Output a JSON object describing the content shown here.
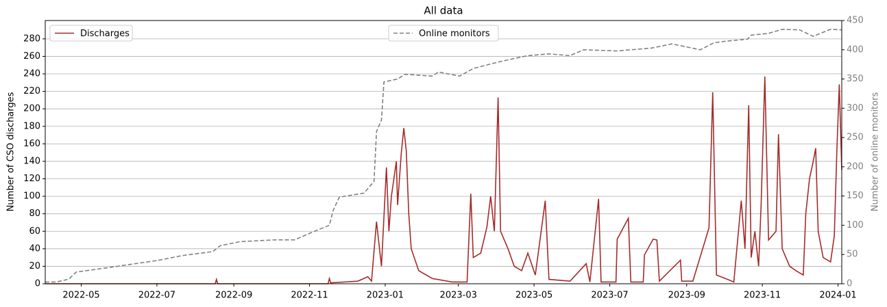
{
  "chart_data": {
    "type": "line",
    "title": "All data",
    "ylabel": "Number of CSO discharges",
    "y2label": "Number of online monitors",
    "xlim": [
      "2022-04-02",
      "2024-01-04"
    ],
    "xticks": [
      "2022-05",
      "2022-07",
      "2022-09",
      "2022-11",
      "2023-01",
      "2023-03",
      "2023-05",
      "2023-07",
      "2023-09",
      "2023-11",
      "2024-01"
    ],
    "ylim": [
      0,
      301
    ],
    "yticks": [
      0,
      20,
      40,
      60,
      80,
      100,
      120,
      140,
      160,
      180,
      200,
      220,
      240,
      260,
      280
    ],
    "y2lim": [
      0,
      450
    ],
    "y2ticks": [
      0,
      50,
      100,
      150,
      200,
      250,
      300,
      350,
      400,
      450
    ],
    "grid": true,
    "series": [
      {
        "name": "Discharges",
        "color": "#a52a2a",
        "dash": false,
        "axis": "y",
        "legend": "upper left",
        "x": [
          "2022-04-02",
          "2022-08-17",
          "2022-08-18",
          "2022-08-19",
          "2022-11-16",
          "2022-11-17",
          "2022-11-18",
          "2022-12-10",
          "2022-12-18",
          "2022-12-21",
          "2022-12-25",
          "2022-12-29",
          "2023-01-02",
          "2023-01-04",
          "2023-01-06",
          "2023-01-10",
          "2023-01-11",
          "2023-01-14",
          "2023-01-16",
          "2023-01-18",
          "2023-01-20",
          "2023-01-22",
          "2023-01-28",
          "2023-02-08",
          "2023-02-24",
          "2023-03-08",
          "2023-03-11",
          "2023-03-13",
          "2023-03-19",
          "2023-03-24",
          "2023-03-27",
          "2023-03-30",
          "2023-04-02",
          "2023-04-04",
          "2023-04-10",
          "2023-04-15",
          "2023-04-21",
          "2023-04-26",
          "2023-05-02",
          "2023-05-10",
          "2023-05-13",
          "2023-05-30",
          "2023-06-12",
          "2023-06-15",
          "2023-06-22",
          "2023-06-24",
          "2023-07-06",
          "2023-07-07",
          "2023-07-16",
          "2023-07-18",
          "2023-07-28",
          "2023-07-29",
          "2023-08-05",
          "2023-08-08",
          "2023-08-10",
          "2023-08-27",
          "2023-08-28",
          "2023-09-06",
          "2023-09-19",
          "2023-09-22",
          "2023-09-25",
          "2023-10-04",
          "2023-10-09",
          "2023-10-15",
          "2023-10-18",
          "2023-10-21",
          "2023-10-23",
          "2023-10-26",
          "2023-10-29",
          "2023-10-31",
          "2023-11-03",
          "2023-11-06",
          "2023-11-12",
          "2023-11-14",
          "2023-11-17",
          "2023-11-23",
          "2023-11-28",
          "2023-12-04",
          "2023-12-06",
          "2023-12-09",
          "2023-12-12",
          "2023-12-14",
          "2023-12-16",
          "2023-12-20",
          "2023-12-26",
          "2023-12-29",
          "2023-12-31",
          "2024-01-02",
          "2024-01-04"
        ],
        "values": [
          0,
          0,
          5,
          0,
          0,
          6,
          1,
          3,
          8,
          3,
          71,
          20,
          133,
          60,
          100,
          140,
          90,
          150,
          178,
          152,
          80,
          40,
          15,
          6,
          2,
          2,
          103,
          30,
          35,
          65,
          100,
          60,
          213,
          60,
          40,
          20,
          15,
          35,
          10,
          95,
          5,
          3,
          23,
          2,
          97,
          2,
          2,
          51,
          75,
          2,
          2,
          33,
          51,
          50,
          3,
          27,
          3,
          3,
          64,
          219,
          10,
          5,
          2,
          95,
          40,
          204,
          30,
          60,
          20,
          90,
          237,
          50,
          60,
          171,
          40,
          20,
          15,
          10,
          80,
          120,
          140,
          155,
          60,
          30,
          25,
          55,
          150,
          228,
          130
        ]
      },
      {
        "name": "Online monitors",
        "color": "#808080",
        "dash": true,
        "axis": "y2",
        "legend": "upper center",
        "x": [
          "2022-04-02",
          "2022-04-11",
          "2022-04-21",
          "2022-04-27",
          "2022-05-24",
          "2022-07-02",
          "2022-07-21",
          "2022-08-15",
          "2022-08-21",
          "2022-09-06",
          "2022-10-04",
          "2022-10-20",
          "2022-11-03",
          "2022-11-17",
          "2022-11-20",
          "2022-11-25",
          "2022-12-15",
          "2022-12-23",
          "2022-12-25",
          "2022-12-29",
          "2022-12-31",
          "2023-01-11",
          "2023-01-17",
          "2023-02-08",
          "2023-02-13",
          "2023-03-02",
          "2023-03-13",
          "2023-04-04",
          "2023-04-26",
          "2023-05-13",
          "2023-05-30",
          "2023-06-10",
          "2023-07-07",
          "2023-08-04",
          "2023-08-20",
          "2023-09-12",
          "2023-09-23",
          "2023-10-04",
          "2023-10-20",
          "2023-10-23",
          "2023-11-06",
          "2023-11-17",
          "2023-12-01",
          "2023-12-12",
          "2023-12-26",
          "2024-01-04"
        ],
        "values": [
          3,
          3,
          8,
          20,
          28,
          40,
          48,
          55,
          65,
          72,
          75,
          75,
          88,
          100,
          125,
          148,
          155,
          175,
          260,
          280,
          345,
          350,
          358,
          355,
          362,
          355,
          368,
          380,
          390,
          393,
          390,
          400,
          398,
          403,
          410,
          400,
          412,
          415,
          418,
          425,
          428,
          435,
          434,
          423,
          435,
          434
        ]
      }
    ]
  }
}
